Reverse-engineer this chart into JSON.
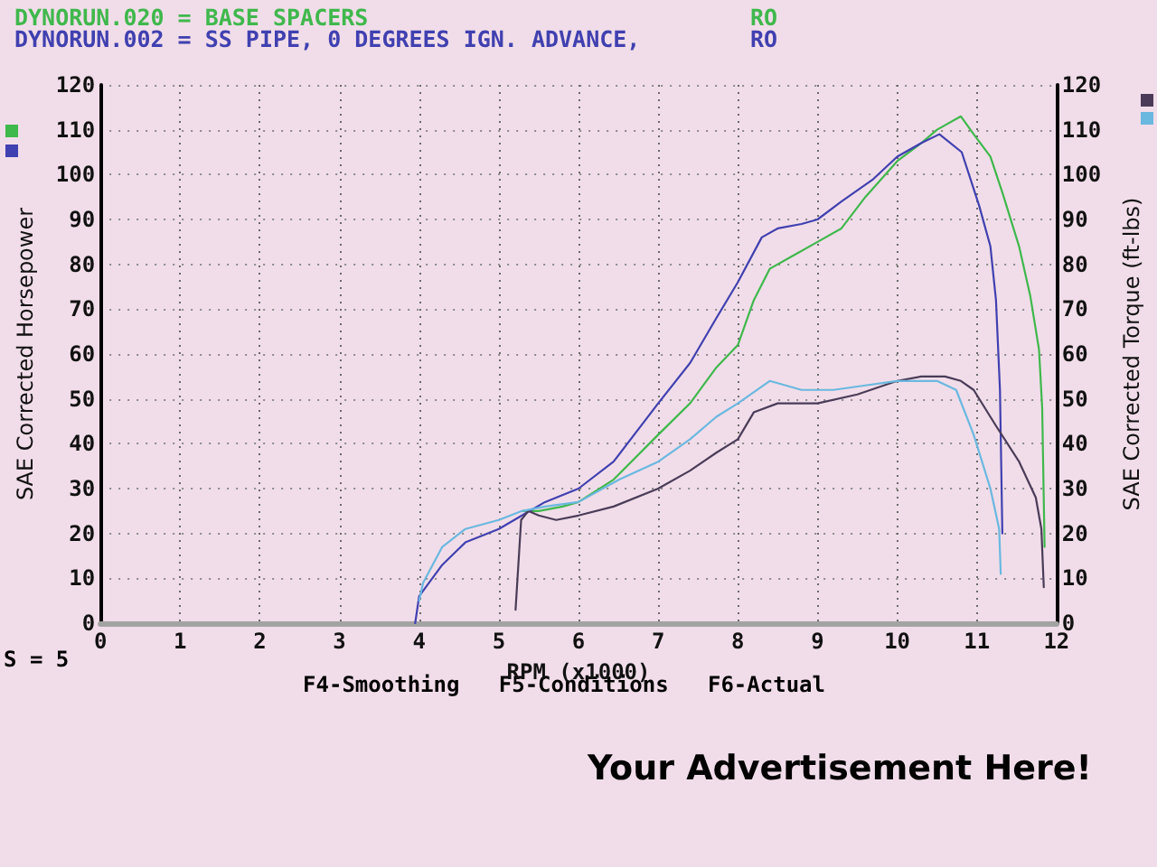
{
  "chart_data": {
    "type": "line",
    "xlabel": "RPM (x1000)",
    "ylabel": "SAE Corrected Horsepower",
    "y2label": "SAE Corrected Torque (ft-lbs)",
    "annotations": [
      "DYNORUN.020 = BASE SPACERS",
      "RO",
      "DYNORUN.002 = SS PIPE, 0 DEGREES IGN. ADVANCE,",
      "RO",
      "S = 5",
      "F4-Smoothing   F5-Conditions   F6-Actual",
      "Your Advertisement Here!"
    ],
    "xlim": [
      0,
      12
    ],
    "xticks": [
      0,
      1,
      2,
      3,
      4,
      5,
      6,
      7,
      8,
      9,
      10,
      11,
      12
    ],
    "ylim": [
      0,
      120
    ],
    "yticks": [
      0,
      10,
      20,
      30,
      40,
      50,
      60,
      70,
      80,
      90,
      100,
      110,
      120
    ],
    "y2lim": [
      0,
      120
    ],
    "y2ticks": [
      0,
      10,
      20,
      30,
      40,
      50,
      60,
      70,
      80,
      90,
      100,
      110,
      120
    ],
    "grid": true,
    "marker": "none",
    "line_style": "solid",
    "series": [
      {
        "color": "#3fb84c",
        "x": [
          5.3,
          5.5,
          5.8,
          6.0,
          6.44,
          7.0,
          7.4,
          7.73,
          8.0,
          8.2,
          8.4,
          8.7,
          9.0,
          9.3,
          9.6,
          10.0,
          10.3,
          10.5,
          10.8,
          10.96,
          11.17,
          11.32,
          11.46,
          11.53,
          11.67,
          11.78,
          11.82,
          11.85
        ],
        "values": [
          25,
          25,
          26,
          27,
          32,
          42,
          49,
          57,
          62,
          72,
          79,
          82,
          85,
          88,
          95,
          103,
          107,
          110,
          113,
          109,
          104,
          96,
          88,
          84,
          73,
          61,
          48,
          17
        ]
      },
      {
        "color": "#4040b0",
        "x": [
          3.95,
          4.0,
          4.29,
          4.58,
          5.0,
          5.29,
          5.58,
          6.0,
          6.44,
          7.0,
          7.4,
          7.73,
          8.0,
          8.3,
          8.5,
          8.8,
          9.0,
          9.3,
          9.7,
          10.0,
          10.3,
          10.53,
          10.81,
          11.03,
          11.17,
          11.24,
          11.29,
          11.32
        ],
        "values": [
          0,
          6,
          13,
          18,
          21,
          24,
          27,
          30,
          36,
          49,
          58,
          68,
          76,
          86,
          88,
          89,
          90,
          94,
          99,
          104,
          107,
          109,
          105,
          93,
          84,
          72,
          52,
          20
        ]
      },
      {
        "color": "#4a3c58",
        "axis": "y2",
        "x": [
          5.21,
          5.28,
          5.37,
          5.5,
          5.72,
          6.0,
          6.44,
          7.0,
          7.4,
          7.73,
          8.0,
          8.2,
          8.5,
          9.0,
          9.5,
          10.0,
          10.3,
          10.6,
          10.8,
          10.96,
          11.24,
          11.53,
          11.74,
          11.81,
          11.84
        ],
        "values": [
          3,
          23,
          25,
          24,
          23,
          24,
          26,
          30,
          34,
          38,
          41,
          47,
          49,
          49,
          51,
          54,
          55,
          55,
          54,
          52,
          44,
          36,
          28,
          21,
          8
        ]
      },
      {
        "color": "#6ab8e0",
        "axis": "y2",
        "x": [
          4.0,
          4.05,
          4.29,
          4.58,
          5.0,
          5.29,
          5.58,
          6.0,
          6.51,
          7.0,
          7.4,
          7.73,
          8.0,
          8.4,
          8.8,
          9.2,
          9.6,
          10.0,
          10.3,
          10.5,
          10.74,
          10.96,
          11.17,
          11.28,
          11.3
        ],
        "values": [
          5,
          9,
          17,
          21,
          23,
          25,
          26,
          27,
          32,
          36,
          41,
          46,
          49,
          54,
          52,
          52,
          53,
          54,
          54,
          54,
          52,
          42,
          30,
          21,
          11
        ]
      }
    ]
  }
}
